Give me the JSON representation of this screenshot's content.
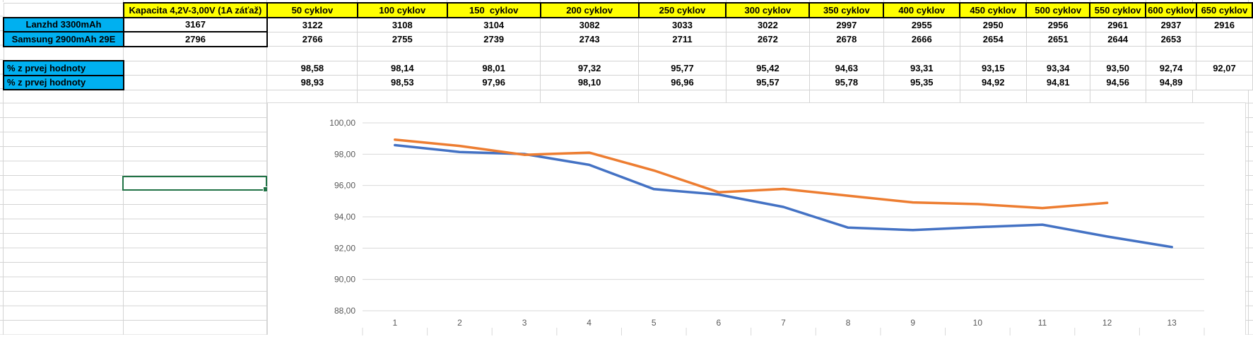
{
  "table": {
    "headers": [
      "",
      "Kapacita 4,2V-3,00V (1A záťaž)",
      "50 cyklov",
      "100 cyklov",
      "150  cyklov",
      "200 cyklov",
      "250 cyklov",
      "300 cyklov",
      "350 cyklov",
      "400 cyklov",
      "450 cyklov",
      "500 cyklov",
      "550 cyklov",
      "600 cyklov",
      "650 cyklov"
    ],
    "rows": [
      {
        "kind": "data",
        "label": "Lanzhd 3300mAh",
        "values": [
          "3167",
          "3122",
          "3108",
          "3104",
          "3082",
          "3033",
          "3022",
          "2997",
          "2955",
          "2950",
          "2956",
          "2961",
          "2937",
          "2916"
        ]
      },
      {
        "kind": "data",
        "label": "Samsung 2900mAh 29E",
        "values": [
          "2796",
          "2766",
          "2755",
          "2739",
          "2743",
          "2711",
          "2672",
          "2678",
          "2666",
          "2654",
          "2651",
          "2644",
          "2653",
          ""
        ]
      },
      {
        "kind": "spacer",
        "label": "",
        "values": [
          "",
          "",
          "",
          "",
          "",
          "",
          "",
          "",
          "",
          "",
          "",
          "",
          "",
          ""
        ]
      },
      {
        "kind": "percent",
        "label": "% z prvej hodnoty",
        "values": [
          "",
          "98,58",
          "98,14",
          "98,01",
          "97,32",
          "95,77",
          "95,42",
          "94,63",
          "93,31",
          "93,15",
          "93,34",
          "93,50",
          "92,74",
          "92,07"
        ]
      },
      {
        "kind": "percent",
        "label": "% z prvej hodnoty",
        "values": [
          "",
          "98,93",
          "98,53",
          "97,96",
          "98,10",
          "96,96",
          "95,57",
          "95,78",
          "95,35",
          "94,92",
          "94,81",
          "94,56",
          "94,89",
          ""
        ]
      }
    ]
  },
  "chart_data": {
    "type": "line",
    "categories": [
      "1",
      "2",
      "3",
      "4",
      "5",
      "6",
      "7",
      "8",
      "9",
      "10",
      "11",
      "12",
      "13"
    ],
    "series": [
      {
        "name": "Lanzhd 3300mAh",
        "color": "#4472C4",
        "values": [
          98.58,
          98.14,
          98.01,
          97.32,
          95.77,
          95.42,
          94.63,
          93.31,
          93.15,
          93.34,
          93.5,
          92.74,
          92.07
        ]
      },
      {
        "name": "Samsung 2900mAh 29E",
        "color": "#ED7D31",
        "values": [
          98.93,
          98.53,
          97.96,
          98.1,
          96.96,
          95.57,
          95.78,
          95.35,
          94.92,
          94.81,
          94.56,
          94.89
        ]
      }
    ],
    "title": "",
    "xlabel": "",
    "ylabel": "",
    "ylim": [
      88,
      100
    ],
    "y_ticks": [
      {
        "value": 100,
        "label": "100,00"
      },
      {
        "value": 98,
        "label": "98,00"
      },
      {
        "value": 96,
        "label": "96,00"
      },
      {
        "value": 94,
        "label": "94,00"
      },
      {
        "value": 92,
        "label": "92,00"
      },
      {
        "value": 90,
        "label": "90,00"
      },
      {
        "value": 88,
        "label": "88,00"
      }
    ],
    "grid": true,
    "legend": "none"
  },
  "colors": {
    "header_fill": "#FFFF00",
    "label_fill": "#00B0F0",
    "series_blue": "#4472C4",
    "series_orange": "#ED7D31",
    "selection_border": "#217346",
    "sheet_gridline": "#D4D4D4",
    "chart_gridline": "#D9D9D9",
    "axis_text": "#595959"
  }
}
